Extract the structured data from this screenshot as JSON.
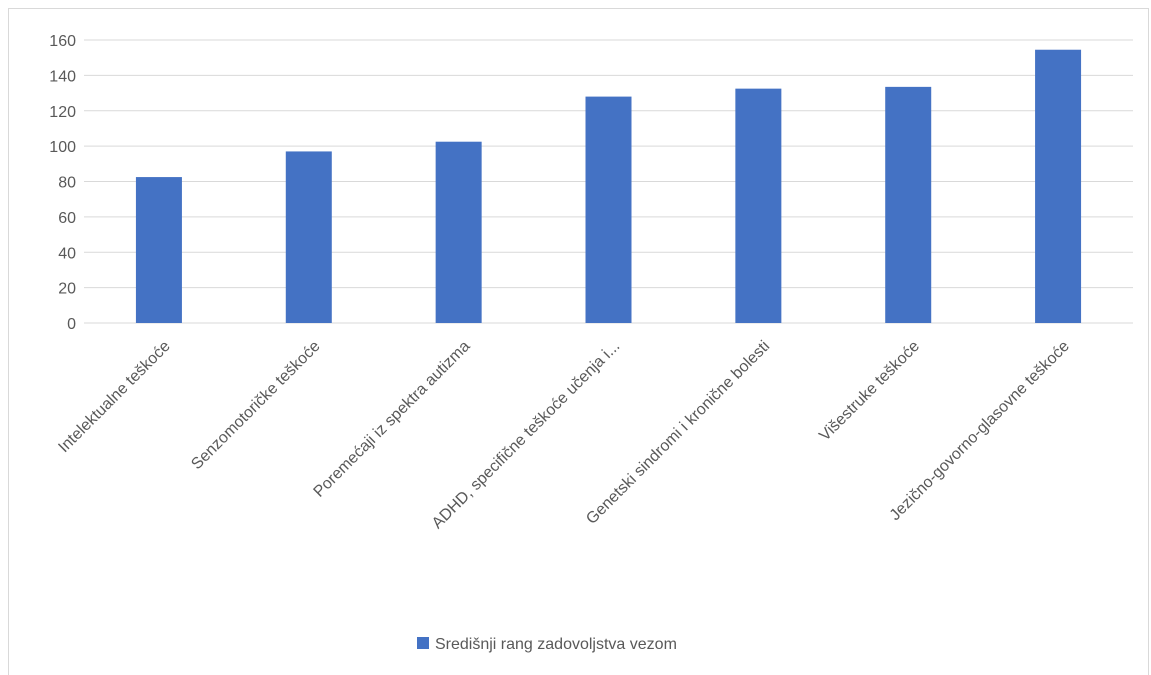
{
  "chart_data": {
    "type": "bar",
    "categories": [
      "Intelektualne teškoće",
      "Senzomotoričke teškoće",
      "Poremećaji iz spektra autizma",
      "ADHD, specifične teškoće učenja i...",
      "Genetski sindromi i kronične bolesti",
      "Višestruke teškoće",
      "Jezično-govorno-glasovne teškoće"
    ],
    "series": [
      {
        "name": "Središnji rang zadovoljstva vezom",
        "values": [
          82.5,
          97,
          102.5,
          128,
          132.5,
          133.5,
          154.5
        ],
        "color": "#4472c4"
      }
    ],
    "title": "",
    "xlabel": "",
    "ylabel": "",
    "ylim": [
      0,
      160
    ],
    "yticks": [
      "0",
      "20",
      "40",
      "60",
      "80",
      "100",
      "120",
      "140",
      "160"
    ],
    "grid": true,
    "legend_position": "bottom"
  }
}
